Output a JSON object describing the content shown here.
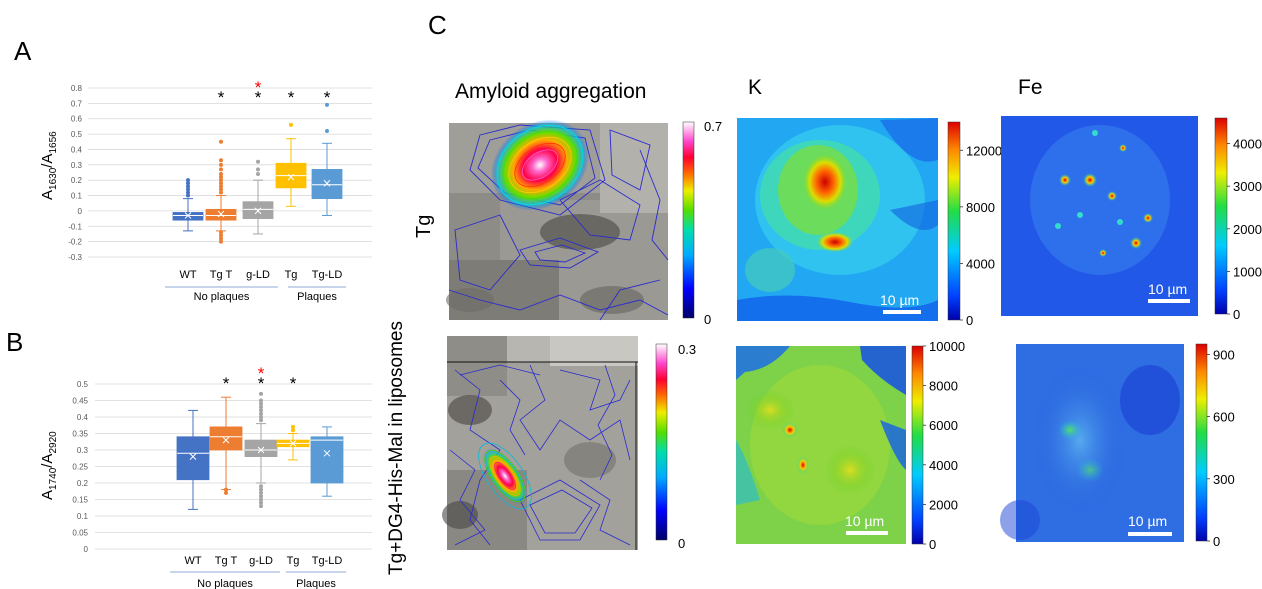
{
  "panel_labels": {
    "a": "A",
    "b": "B",
    "c": "C"
  },
  "colors": {
    "wt": "#4472C4",
    "tgt": "#ED7D31",
    "gld": "#A5A5A5",
    "tg": "#FFC000",
    "tgld": "#5B9BD5",
    "star_black": "#000000",
    "star_red": "#FF0000"
  },
  "chart_data": [
    {
      "type": "box",
      "ylabel_main": "A",
      "ylabel_sub1": "1630",
      "ylabel_sep": "/A",
      "ylabel_sub2": "1656",
      "ylim": [
        -0.3,
        0.8
      ],
      "yticks": [
        "-0.3",
        "-0.2",
        "-0.1",
        "0",
        "0.1",
        "0.2",
        "0.3",
        "0.4",
        "0.5",
        "0.6",
        "0.7",
        "0.8"
      ],
      "ytick_values": [
        -0.3,
        -0.2,
        -0.1,
        0,
        0.1,
        0.2,
        0.3,
        0.4,
        0.5,
        0.6,
        0.7,
        0.8
      ],
      "categories": [
        "WT",
        "Tg T",
        "g-LD",
        "Tg",
        "Tg-LD"
      ],
      "groups": [
        {
          "label": "No plaques",
          "from": 0,
          "to": 2
        },
        {
          "label": "Plaques",
          "from": 3,
          "to": 4
        }
      ],
      "boxes": [
        {
          "category": "WT",
          "min": -0.13,
          "q1": -0.06,
          "median": -0.03,
          "q3": -0.01,
          "max": 0.08,
          "mean": -0.03,
          "color": "#4472C4",
          "outliers": [
            0.1,
            0.12,
            0.14,
            0.16,
            0.18,
            0.2
          ]
        },
        {
          "category": "Tg T",
          "min": -0.13,
          "q1": -0.06,
          "median": -0.03,
          "q3": 0.01,
          "max": 0.1,
          "mean": -0.02,
          "color": "#ED7D31",
          "outliers": [
            -0.2,
            -0.18,
            -0.16,
            -0.14,
            0.12,
            0.14,
            0.16,
            0.18,
            0.2,
            0.22,
            0.24,
            0.27,
            0.3,
            0.33,
            0.45
          ]
        },
        {
          "category": "g-LD",
          "min": -0.15,
          "q1": -0.05,
          "median": 0.01,
          "q3": 0.06,
          "max": 0.2,
          "mean": 0.0,
          "color": "#A5A5A5",
          "outliers": [
            0.24,
            0.27,
            0.32
          ]
        },
        {
          "category": "Tg",
          "min": 0.03,
          "q1": 0.15,
          "median": 0.23,
          "q3": 0.31,
          "max": 0.47,
          "mean": 0.22,
          "color": "#FFC000",
          "outliers": [
            0.56
          ]
        },
        {
          "category": "Tg-LD",
          "min": -0.03,
          "q1": 0.08,
          "median": 0.17,
          "q3": 0.27,
          "max": 0.44,
          "mean": 0.18,
          "color": "#5B9BD5",
          "outliers": [
            0.52,
            0.69
          ]
        }
      ],
      "significance": [
        {
          "category": "Tg T",
          "marks": [
            {
              "text": "*",
              "color": "#000000"
            }
          ]
        },
        {
          "category": "g-LD",
          "marks": [
            {
              "text": "*",
              "color": "#FF0000"
            },
            {
              "text": "*",
              "color": "#000000"
            }
          ]
        },
        {
          "category": "Tg",
          "marks": [
            {
              "text": "*",
              "color": "#000000"
            }
          ]
        },
        {
          "category": "Tg-LD",
          "marks": [
            {
              "text": "*",
              "color": "#000000"
            }
          ]
        }
      ]
    },
    {
      "type": "box",
      "ylabel_main": "A",
      "ylabel_sub1": "1740",
      "ylabel_sep": "/A",
      "ylabel_sub2": "2920",
      "ylim": [
        0,
        0.5
      ],
      "yticks": [
        "0",
        "0.05",
        "0.1",
        "0.15",
        "0.2",
        "0.25",
        "0.3",
        "0.35",
        "0.4",
        "0.45",
        "0.5"
      ],
      "ytick_values": [
        0,
        0.05,
        0.1,
        0.15,
        0.2,
        0.25,
        0.3,
        0.35,
        0.4,
        0.45,
        0.5
      ],
      "categories": [
        "WT",
        "Tg T",
        "g-LD",
        "Tg",
        "Tg-LD"
      ],
      "groups": [
        {
          "label": "No plaques",
          "from": 0,
          "to": 2
        },
        {
          "label": "Plaques",
          "from": 3,
          "to": 4
        }
      ],
      "boxes": [
        {
          "category": "WT",
          "min": 0.12,
          "q1": 0.21,
          "median": 0.29,
          "q3": 0.34,
          "max": 0.42,
          "mean": 0.28,
          "color": "#4472C4",
          "outliers": []
        },
        {
          "category": "Tg T",
          "min": 0.18,
          "q1": 0.3,
          "median": 0.34,
          "q3": 0.37,
          "max": 0.46,
          "mean": 0.33,
          "color": "#ED7D31",
          "outliers": [
            0.17,
            0.18
          ]
        },
        {
          "category": "g-LD",
          "min": 0.2,
          "q1": 0.28,
          "median": 0.3,
          "q3": 0.33,
          "max": 0.38,
          "mean": 0.3,
          "color": "#A5A5A5",
          "outliers": [
            0.13,
            0.14,
            0.15,
            0.16,
            0.17,
            0.18,
            0.19,
            0.39,
            0.4,
            0.41,
            0.42,
            0.43,
            0.44,
            0.45,
            0.47
          ]
        },
        {
          "category": "Tg",
          "min": 0.27,
          "q1": 0.31,
          "median": 0.32,
          "q3": 0.33,
          "max": 0.35,
          "mean": 0.32,
          "color": "#FFC000",
          "outliers": [
            0.36,
            0.37
          ]
        },
        {
          "category": "Tg-LD",
          "min": 0.16,
          "q1": 0.2,
          "median": 0.33,
          "q3": 0.34,
          "max": 0.37,
          "mean": 0.29,
          "color": "#5B9BD5",
          "outliers": []
        }
      ],
      "significance": [
        {
          "category": "Tg T",
          "marks": [
            {
              "text": "*",
              "color": "#000000"
            }
          ]
        },
        {
          "category": "g-LD",
          "marks": [
            {
              "text": "*",
              "color": "#FF0000"
            },
            {
              "text": "*",
              "color": "#000000"
            }
          ]
        },
        {
          "category": "Tg",
          "marks": [
            {
              "text": "*",
              "color": "#000000"
            }
          ]
        }
      ]
    },
    {
      "type": "heatmap",
      "column_title": "Amyloid aggregation",
      "row_label": "Tg",
      "colorbar": {
        "max": "0.7",
        "min": "0"
      }
    },
    {
      "type": "heatmap",
      "row_label": "Tg+DG4-His-Mal in liposomes",
      "colorbar": {
        "max": "0.3",
        "min": "0"
      }
    },
    {
      "type": "heatmap",
      "column_title": "K",
      "colorbar": {
        "ticks": [
          "12000",
          "8000",
          "4000",
          "0"
        ],
        "tick_values": [
          12000,
          8000,
          4000,
          0
        ],
        "max_value": 14000
      },
      "scale_bar": "10 µm"
    },
    {
      "type": "heatmap",
      "column_title": "Fe",
      "colorbar": {
        "ticks": [
          "4000",
          "3000",
          "2000",
          "1000",
          "0"
        ],
        "tick_values": [
          4000,
          3000,
          2000,
          1000,
          0
        ],
        "max_value": 4600
      },
      "scale_bar": "10 µm"
    },
    {
      "type": "heatmap",
      "colorbar": {
        "ticks": [
          "10000",
          "8000",
          "6000",
          "4000",
          "2000",
          "0"
        ],
        "tick_values": [
          10000,
          8000,
          6000,
          4000,
          2000,
          0
        ],
        "max_value": 10000
      },
      "scale_bar": "10 µm"
    },
    {
      "type": "heatmap",
      "colorbar": {
        "ticks": [
          "900",
          "600",
          "300",
          "0"
        ],
        "tick_values": [
          900,
          600,
          300,
          0
        ],
        "max_value": 950
      },
      "scale_bar": "10 µm"
    }
  ]
}
